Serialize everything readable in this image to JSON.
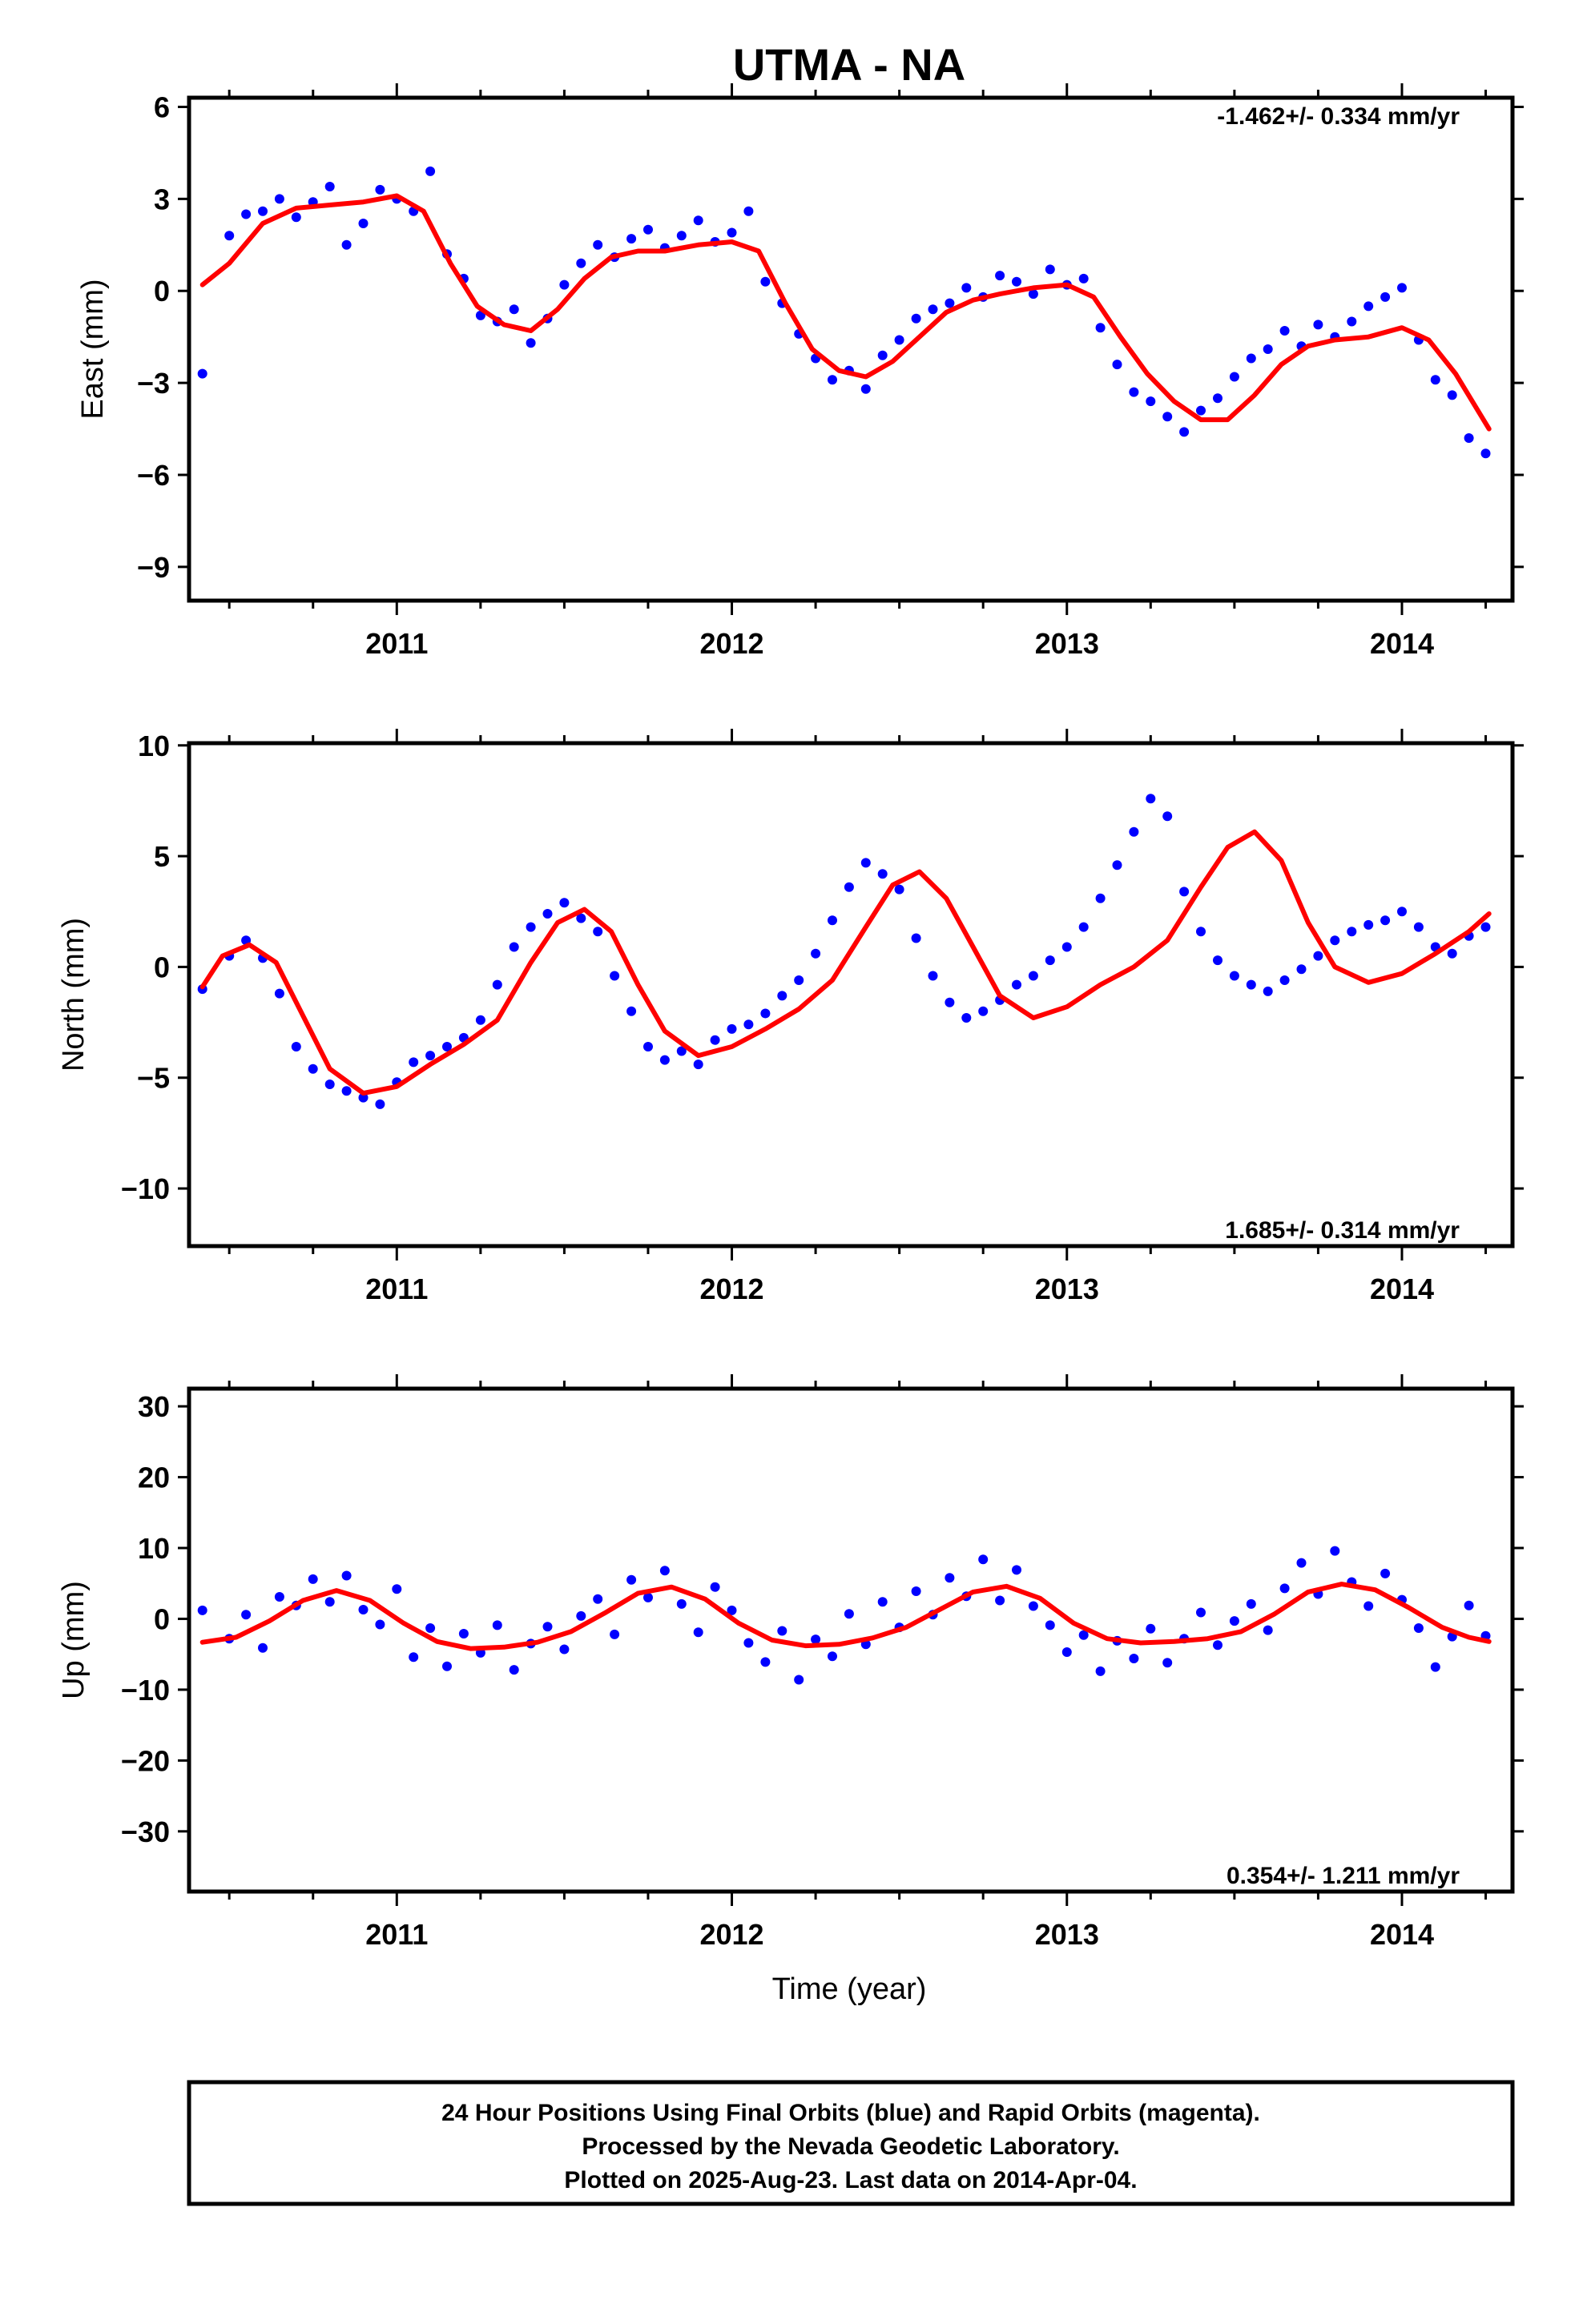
{
  "title": "UTMA - NA",
  "xlabel": "Time (year)",
  "colors": {
    "points": "#0000ff",
    "model": "#ff0000",
    "frame": "#000000"
  },
  "footer": {
    "line1": "24 Hour Positions Using Final Orbits (blue) and Rapid Orbits (magenta).",
    "line2": "Processed by the Nevada Geodetic Laboratory.",
    "line3": "Plotted on 2025-Aug-23. Last data on 2014-Apr-04."
  },
  "chart_data": [
    {
      "type": "scatter",
      "panel": "east",
      "ylabel": "East (mm)",
      "rate_text": "-1.462+/- 0.334 mm/yr",
      "rate_position": "top-right",
      "xlim": [
        2010.38,
        2014.33
      ],
      "ylim": [
        -10.1,
        6.3
      ],
      "xticks": [
        2011,
        2012,
        2013,
        2014
      ],
      "xtick_labels": [
        "2011",
        "2012",
        "2013",
        "2014"
      ],
      "yticks": [
        6,
        3,
        0,
        -3,
        -6,
        -9
      ],
      "ytick_labels": [
        "6",
        "3",
        "0",
        "−3",
        "−6",
        "−9"
      ],
      "series": [
        {
          "kind": "daily positions (scatter)",
          "x": [
            2010.42,
            2010.5,
            2010.55,
            2010.6,
            2010.65,
            2010.7,
            2010.75,
            2010.8,
            2010.85,
            2010.9,
            2010.95,
            2011.0,
            2011.05,
            2011.1,
            2011.15,
            2011.2,
            2011.25,
            2011.3,
            2011.35,
            2011.4,
            2011.45,
            2011.5,
            2011.55,
            2011.6,
            2011.65,
            2011.7,
            2011.75,
            2011.8,
            2011.85,
            2011.9,
            2011.95,
            2012.0,
            2012.05,
            2012.1,
            2012.15,
            2012.2,
            2012.25,
            2012.3,
            2012.35,
            2012.4,
            2012.45,
            2012.5,
            2012.55,
            2012.6,
            2012.65,
            2012.7,
            2012.75,
            2012.8,
            2012.85,
            2012.9,
            2012.95,
            2013.0,
            2013.05,
            2013.1,
            2013.15,
            2013.2,
            2013.25,
            2013.3,
            2013.35,
            2013.4,
            2013.45,
            2013.5,
            2013.55,
            2013.6,
            2013.65,
            2013.7,
            2013.75,
            2013.8,
            2013.85,
            2013.9,
            2013.95,
            2014.0,
            2014.05,
            2014.1,
            2014.15,
            2014.2,
            2014.25
          ],
          "y": [
            -2.7,
            1.8,
            2.5,
            2.6,
            3.0,
            2.4,
            2.9,
            3.4,
            1.5,
            2.2,
            3.3,
            3.0,
            2.6,
            3.9,
            1.2,
            0.4,
            -0.8,
            -1.0,
            -0.6,
            -1.7,
            -0.9,
            0.2,
            0.9,
            1.5,
            1.1,
            1.7,
            2.0,
            1.4,
            1.8,
            2.3,
            1.6,
            1.9,
            2.6,
            0.3,
            -0.4,
            -1.4,
            -2.2,
            -2.9,
            -2.6,
            -3.2,
            -2.1,
            -1.6,
            -0.9,
            -0.6,
            -0.4,
            0.1,
            -0.2,
            0.5,
            0.3,
            -0.1,
            0.7,
            0.2,
            0.4,
            -1.2,
            -2.4,
            -3.3,
            -3.6,
            -4.1,
            -4.6,
            -3.9,
            -3.5,
            -2.8,
            -2.2,
            -1.9,
            -1.3,
            -1.8,
            -1.1,
            -1.5,
            -1.0,
            -0.5,
            -0.2,
            0.1,
            -1.6,
            -2.9,
            -3.4,
            -4.8,
            -5.3
          ]
        },
        {
          "kind": "model fit (line)",
          "x": [
            2010.42,
            2010.5,
            2010.6,
            2010.7,
            2010.8,
            2010.9,
            2011.0,
            2011.08,
            2011.16,
            2011.24,
            2011.32,
            2011.4,
            2011.48,
            2011.56,
            2011.64,
            2011.72,
            2011.8,
            2011.9,
            2012.0,
            2012.08,
            2012.16,
            2012.24,
            2012.32,
            2012.4,
            2012.48,
            2012.56,
            2012.64,
            2012.72,
            2012.8,
            2012.9,
            2013.0,
            2013.08,
            2013.16,
            2013.24,
            2013.32,
            2013.4,
            2013.48,
            2013.56,
            2013.64,
            2013.72,
            2013.8,
            2013.9,
            2014.0,
            2014.08,
            2014.16,
            2014.26
          ],
          "y": [
            0.2,
            0.9,
            2.2,
            2.7,
            2.8,
            2.9,
            3.1,
            2.6,
            0.9,
            -0.5,
            -1.1,
            -1.3,
            -0.6,
            0.4,
            1.1,
            1.3,
            1.3,
            1.5,
            1.6,
            1.3,
            -0.4,
            -1.9,
            -2.6,
            -2.8,
            -2.3,
            -1.5,
            -0.7,
            -0.3,
            -0.1,
            0.1,
            0.2,
            -0.2,
            -1.5,
            -2.7,
            -3.6,
            -4.2,
            -4.2,
            -3.4,
            -2.4,
            -1.8,
            -1.6,
            -1.5,
            -1.2,
            -1.6,
            -2.7,
            -4.5
          ]
        }
      ]
    },
    {
      "type": "scatter",
      "panel": "north",
      "ylabel": "North (mm)",
      "rate_text": "1.685+/- 0.314 mm/yr",
      "rate_position": "bottom-right",
      "xlim": [
        2010.38,
        2014.33
      ],
      "ylim": [
        -12.6,
        10.1
      ],
      "xticks": [
        2011,
        2012,
        2013,
        2014
      ],
      "xtick_labels": [
        "2011",
        "2012",
        "2013",
        "2014"
      ],
      "yticks": [
        10,
        5,
        0,
        -5,
        -10
      ],
      "ytick_labels": [
        "10",
        "5",
        "0",
        "−5",
        "−10"
      ],
      "series": [
        {
          "kind": "daily positions (scatter)",
          "x": [
            2010.42,
            2010.5,
            2010.55,
            2010.6,
            2010.65,
            2010.7,
            2010.75,
            2010.8,
            2010.85,
            2010.9,
            2010.95,
            2011.0,
            2011.05,
            2011.1,
            2011.15,
            2011.2,
            2011.25,
            2011.3,
            2011.35,
            2011.4,
            2011.45,
            2011.5,
            2011.55,
            2011.6,
            2011.65,
            2011.7,
            2011.75,
            2011.8,
            2011.85,
            2011.9,
            2011.95,
            2012.0,
            2012.05,
            2012.1,
            2012.15,
            2012.2,
            2012.25,
            2012.3,
            2012.35,
            2012.4,
            2012.45,
            2012.5,
            2012.55,
            2012.6,
            2012.65,
            2012.7,
            2012.75,
            2012.8,
            2012.85,
            2012.9,
            2012.95,
            2013.0,
            2013.05,
            2013.1,
            2013.15,
            2013.2,
            2013.25,
            2013.3,
            2013.35,
            2013.4,
            2013.45,
            2013.5,
            2013.55,
            2013.6,
            2013.65,
            2013.7,
            2013.75,
            2013.8,
            2013.85,
            2013.9,
            2013.95,
            2014.0,
            2014.05,
            2014.1,
            2014.15,
            2014.2,
            2014.25
          ],
          "y": [
            -1.0,
            0.5,
            1.2,
            0.4,
            -1.2,
            -3.6,
            -4.6,
            -5.3,
            -5.6,
            -5.9,
            -6.2,
            -5.2,
            -4.3,
            -4.0,
            -3.6,
            -3.2,
            -2.4,
            -0.8,
            0.9,
            1.8,
            2.4,
            2.9,
            2.2,
            1.6,
            -0.4,
            -2.0,
            -3.6,
            -4.2,
            -3.8,
            -4.4,
            -3.3,
            -2.8,
            -2.6,
            -2.1,
            -1.3,
            -0.6,
            0.6,
            2.1,
            3.6,
            4.7,
            4.2,
            3.5,
            1.3,
            -0.4,
            -1.6,
            -2.3,
            -2.0,
            -1.5,
            -0.8,
            -0.4,
            0.3,
            0.9,
            1.8,
            3.1,
            4.6,
            6.1,
            7.6,
            6.8,
            3.4,
            1.6,
            0.3,
            -0.4,
            -0.8,
            -1.1,
            -0.6,
            -0.1,
            0.5,
            1.2,
            1.6,
            1.9,
            2.1,
            2.5,
            1.8,
            0.9,
            0.6,
            1.4,
            1.8
          ]
        },
        {
          "kind": "model fit (line)",
          "x": [
            2010.42,
            2010.48,
            2010.56,
            2010.64,
            2010.72,
            2010.8,
            2010.9,
            2011.0,
            2011.1,
            2011.2,
            2011.3,
            2011.4,
            2011.48,
            2011.56,
            2011.64,
            2011.72,
            2011.8,
            2011.9,
            2012.0,
            2012.1,
            2012.2,
            2012.3,
            2012.4,
            2012.48,
            2012.56,
            2012.64,
            2012.72,
            2012.8,
            2012.9,
            2013.0,
            2013.1,
            2013.2,
            2013.3,
            2013.4,
            2013.48,
            2013.56,
            2013.64,
            2013.72,
            2013.8,
            2013.9,
            2014.0,
            2014.1,
            2014.2,
            2014.26
          ],
          "y": [
            -0.9,
            0.5,
            1.0,
            0.2,
            -2.2,
            -4.6,
            -5.7,
            -5.4,
            -4.4,
            -3.5,
            -2.4,
            0.2,
            2.0,
            2.6,
            1.6,
            -0.8,
            -2.9,
            -4.0,
            -3.6,
            -2.8,
            -1.9,
            -0.6,
            1.8,
            3.7,
            4.3,
            3.1,
            0.9,
            -1.3,
            -2.3,
            -1.8,
            -0.8,
            0.0,
            1.2,
            3.6,
            5.4,
            6.1,
            4.8,
            2.0,
            0.0,
            -0.7,
            -0.3,
            0.6,
            1.6,
            2.4
          ]
        }
      ]
    },
    {
      "type": "scatter",
      "panel": "up",
      "ylabel": "Up (mm)",
      "rate_text": "0.354+/- 1.211 mm/yr",
      "rate_position": "bottom-right",
      "xlim": [
        2010.38,
        2014.33
      ],
      "ylim": [
        -38.5,
        32.5
      ],
      "xticks": [
        2011,
        2012,
        2013,
        2014
      ],
      "xtick_labels": [
        "2011",
        "2012",
        "2013",
        "2014"
      ],
      "yticks": [
        30,
        20,
        10,
        0,
        -10,
        -20,
        -30
      ],
      "ytick_labels": [
        "30",
        "20",
        "10",
        "0",
        "−10",
        "−20",
        "−30"
      ],
      "series": [
        {
          "kind": "daily positions (scatter)",
          "x": [
            2010.42,
            2010.5,
            2010.55,
            2010.6,
            2010.65,
            2010.7,
            2010.75,
            2010.8,
            2010.85,
            2010.9,
            2010.95,
            2011.0,
            2011.05,
            2011.1,
            2011.15,
            2011.2,
            2011.25,
            2011.3,
            2011.35,
            2011.4,
            2011.45,
            2011.5,
            2011.55,
            2011.6,
            2011.65,
            2011.7,
            2011.75,
            2011.8,
            2011.85,
            2011.9,
            2011.95,
            2012.0,
            2012.05,
            2012.1,
            2012.15,
            2012.2,
            2012.25,
            2012.3,
            2012.35,
            2012.4,
            2012.45,
            2012.5,
            2012.55,
            2012.6,
            2012.65,
            2012.7,
            2012.75,
            2012.8,
            2012.85,
            2012.9,
            2012.95,
            2013.0,
            2013.05,
            2013.1,
            2013.15,
            2013.2,
            2013.25,
            2013.3,
            2013.35,
            2013.4,
            2013.45,
            2013.5,
            2013.55,
            2013.6,
            2013.65,
            2013.7,
            2013.75,
            2013.8,
            2013.85,
            2013.9,
            2013.95,
            2014.0,
            2014.05,
            2014.1,
            2014.15,
            2014.2,
            2014.25
          ],
          "y": [
            1.2,
            -2.8,
            0.6,
            -4.1,
            3.1,
            1.9,
            5.6,
            2.4,
            6.1,
            1.3,
            -0.8,
            4.2,
            -5.4,
            -1.3,
            -6.7,
            -2.1,
            -4.8,
            -0.9,
            -7.2,
            -3.5,
            -1.1,
            -4.3,
            0.4,
            2.8,
            -2.2,
            5.5,
            3.0,
            6.8,
            2.1,
            -1.9,
            4.5,
            1.2,
            -3.4,
            -6.1,
            -1.7,
            -8.6,
            -2.9,
            -5.3,
            0.7,
            -3.6,
            2.4,
            -1.2,
            3.9,
            0.6,
            5.8,
            3.2,
            8.4,
            2.6,
            6.9,
            1.8,
            -0.9,
            -4.7,
            -2.3,
            -7.4,
            -3.1,
            -5.6,
            -1.4,
            -6.2,
            -2.8,
            0.9,
            -3.7,
            -0.3,
            2.1,
            -1.6,
            4.3,
            7.9,
            3.5,
            9.6,
            5.2,
            1.8,
            6.4,
            2.7,
            -1.3,
            -6.8,
            -2.5,
            1.9,
            -2.4
          ]
        },
        {
          "kind": "model fit (line)",
          "x": [
            2010.42,
            2010.52,
            2010.62,
            2010.72,
            2010.82,
            2010.92,
            2011.02,
            2011.12,
            2011.22,
            2011.32,
            2011.42,
            2011.52,
            2011.62,
            2011.72,
            2011.82,
            2011.92,
            2012.02,
            2012.12,
            2012.22,
            2012.32,
            2012.42,
            2012.52,
            2012.62,
            2012.72,
            2012.82,
            2012.92,
            2013.02,
            2013.12,
            2013.22,
            2013.32,
            2013.42,
            2013.52,
            2013.62,
            2013.72,
            2013.82,
            2013.92,
            2014.02,
            2014.12,
            2014.2,
            2014.26
          ],
          "y": [
            -3.3,
            -2.6,
            -0.3,
            2.6,
            4.0,
            2.6,
            -0.6,
            -3.2,
            -4.2,
            -4.0,
            -3.3,
            -1.8,
            0.8,
            3.6,
            4.5,
            2.8,
            -0.6,
            -3.0,
            -3.8,
            -3.6,
            -2.7,
            -1.2,
            1.3,
            3.8,
            4.6,
            2.9,
            -0.6,
            -2.8,
            -3.4,
            -3.2,
            -2.8,
            -1.8,
            0.7,
            3.8,
            4.9,
            4.1,
            1.6,
            -1.2,
            -2.6,
            -3.2
          ]
        }
      ]
    }
  ]
}
